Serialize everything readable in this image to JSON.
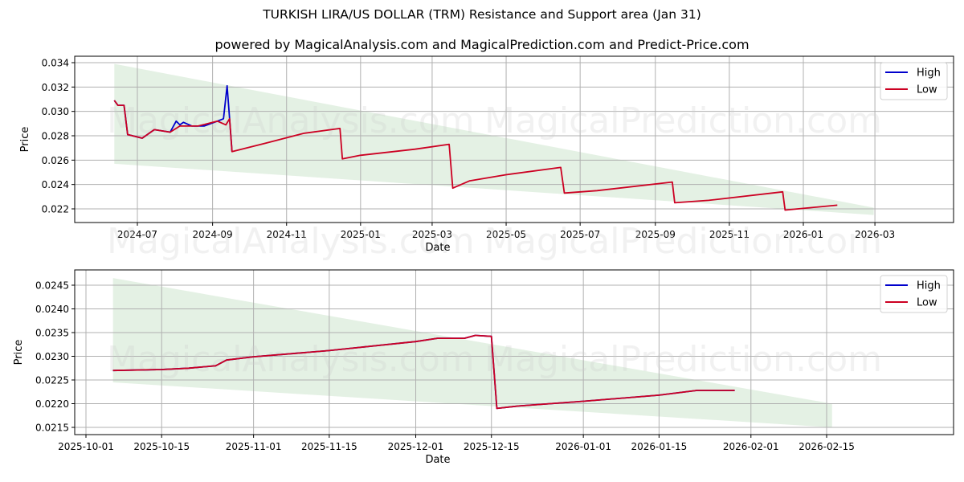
{
  "header": {
    "title": "TURKISH LIRA/US DOLLAR (TRM) Resistance and Support area (Jan 31)",
    "subtitle": "powered by MagicalAnalysis.com and MagicalPrediction.com and Predict-Price.com"
  },
  "watermarks": [
    "MagicalAnalysis.com",
    "MagicalPrediction.com"
  ],
  "colors": {
    "high": "#0000cc",
    "low": "#cc0022",
    "band": "#d6e9d6",
    "grid": "#b0b0b0"
  },
  "legend": {
    "high": "High",
    "low": "Low"
  },
  "chart_data": [
    {
      "type": "line",
      "title": "",
      "xlabel": "Date",
      "ylabel": "Price",
      "ylim": [
        0.0209,
        0.0345
      ],
      "grid": true,
      "legend_position": "upper right",
      "x_ticks": [
        "2024-07",
        "2024-09",
        "2024-11",
        "2025-01",
        "2025-03",
        "2025-05",
        "2025-07",
        "2025-09",
        "2025-11",
        "2026-01",
        "2026-03"
      ],
      "y_ticks": [
        "0.022",
        "0.024",
        "0.026",
        "0.028",
        "0.030",
        "0.032",
        "0.034"
      ],
      "band": {
        "name": "Resistance/Support area",
        "start": "2024-06-12",
        "end": "2026-02-28",
        "upper": [
          0.0339,
          0.0221
        ],
        "lower": [
          0.0257,
          0.0215
        ]
      },
      "series": [
        {
          "name": "High",
          "x": [
            "2024-06-12",
            "2024-06-15",
            "2024-06-20",
            "2024-06-23",
            "2024-07-05",
            "2024-07-15",
            "2024-07-28",
            "2024-08-02",
            "2024-08-05",
            "2024-08-08",
            "2024-08-15",
            "2024-08-25",
            "2024-09-05",
            "2024-09-10",
            "2024-09-13",
            "2024-09-15",
            "2024-09-17"
          ],
          "values": [
            0.0309,
            0.0305,
            0.0305,
            0.0281,
            0.0278,
            0.0285,
            0.0283,
            0.0292,
            0.0289,
            0.0291,
            0.0288,
            0.0288,
            0.0292,
            0.0294,
            0.0321,
            0.0294,
            0.0267
          ]
        },
        {
          "name": "Low",
          "x": [
            "2024-06-12",
            "2024-06-15",
            "2024-06-20",
            "2024-06-23",
            "2024-07-05",
            "2024-07-15",
            "2024-07-28",
            "2024-08-05",
            "2024-08-20",
            "2024-09-05",
            "2024-09-12",
            "2024-09-15",
            "2024-09-17",
            "2024-10-15",
            "2024-11-15",
            "2024-12-15",
            "2024-12-17",
            "2025-01-01",
            "2025-02-15",
            "2025-03-15",
            "2025-03-18",
            "2025-04-01",
            "2025-05-01",
            "2025-06-15",
            "2025-06-18",
            "2025-07-15",
            "2025-09-15",
            "2025-09-17",
            "2025-10-15",
            "2025-12-15",
            "2025-12-17",
            "2026-01-29"
          ],
          "values": [
            0.0309,
            0.0305,
            0.0305,
            0.0281,
            0.0278,
            0.0285,
            0.0283,
            0.0288,
            0.0288,
            0.0292,
            0.0289,
            0.0294,
            0.0267,
            0.0274,
            0.0282,
            0.0286,
            0.0261,
            0.0264,
            0.0269,
            0.0273,
            0.0237,
            0.0243,
            0.0248,
            0.0254,
            0.0233,
            0.0235,
            0.0242,
            0.0225,
            0.0227,
            0.0234,
            0.0219,
            0.0223
          ]
        }
      ]
    },
    {
      "type": "line",
      "title": "",
      "xlabel": "Date",
      "ylabel": "Price",
      "ylim": [
        0.02135,
        0.0248
      ],
      "grid": true,
      "legend_position": "upper right",
      "x_ticks": [
        "2025-10-01",
        "2025-10-15",
        "2025-11-01",
        "2025-11-15",
        "2025-12-01",
        "2025-12-15",
        "2026-01-01",
        "2026-01-15",
        "2026-02-01",
        "2026-02-15"
      ],
      "y_ticks": [
        "0.0215",
        "0.0220",
        "0.0225",
        "0.0230",
        "0.0235",
        "0.0240",
        "0.0245"
      ],
      "band": {
        "name": "Resistance/Support area",
        "start": "2025-10-06",
        "end": "2026-02-16",
        "upper": [
          0.02465,
          0.022
        ],
        "lower": [
          0.02245,
          0.0215
        ]
      },
      "series": [
        {
          "name": "High",
          "x": [
            "2025-10-06",
            "2025-10-15",
            "2025-10-20",
            "2025-10-25",
            "2025-10-27",
            "2025-11-01",
            "2025-11-15",
            "2025-12-01",
            "2025-12-05",
            "2025-12-10",
            "2025-12-12",
            "2025-12-15",
            "2025-12-16",
            "2025-12-20",
            "2026-01-01",
            "2026-01-15",
            "2026-01-22",
            "2026-01-29"
          ],
          "values": [
            0.0227,
            0.02272,
            0.02275,
            0.0228,
            0.02292,
            0.02299,
            0.02312,
            0.02331,
            0.02338,
            0.02338,
            0.02344,
            0.02342,
            0.0219,
            0.02195,
            0.02205,
            0.02218,
            0.02228,
            0.02228
          ]
        },
        {
          "name": "Low",
          "x": [
            "2025-10-06",
            "2025-10-15",
            "2025-10-20",
            "2025-10-25",
            "2025-10-27",
            "2025-11-01",
            "2025-11-15",
            "2025-12-01",
            "2025-12-05",
            "2025-12-10",
            "2025-12-12",
            "2025-12-15",
            "2025-12-16",
            "2025-12-20",
            "2026-01-01",
            "2026-01-15",
            "2026-01-22",
            "2026-01-29"
          ],
          "values": [
            0.0227,
            0.02272,
            0.02275,
            0.0228,
            0.02292,
            0.02299,
            0.02312,
            0.02331,
            0.02338,
            0.02338,
            0.02344,
            0.02342,
            0.0219,
            0.02195,
            0.02205,
            0.02218,
            0.02228,
            0.02228
          ]
        }
      ]
    }
  ]
}
